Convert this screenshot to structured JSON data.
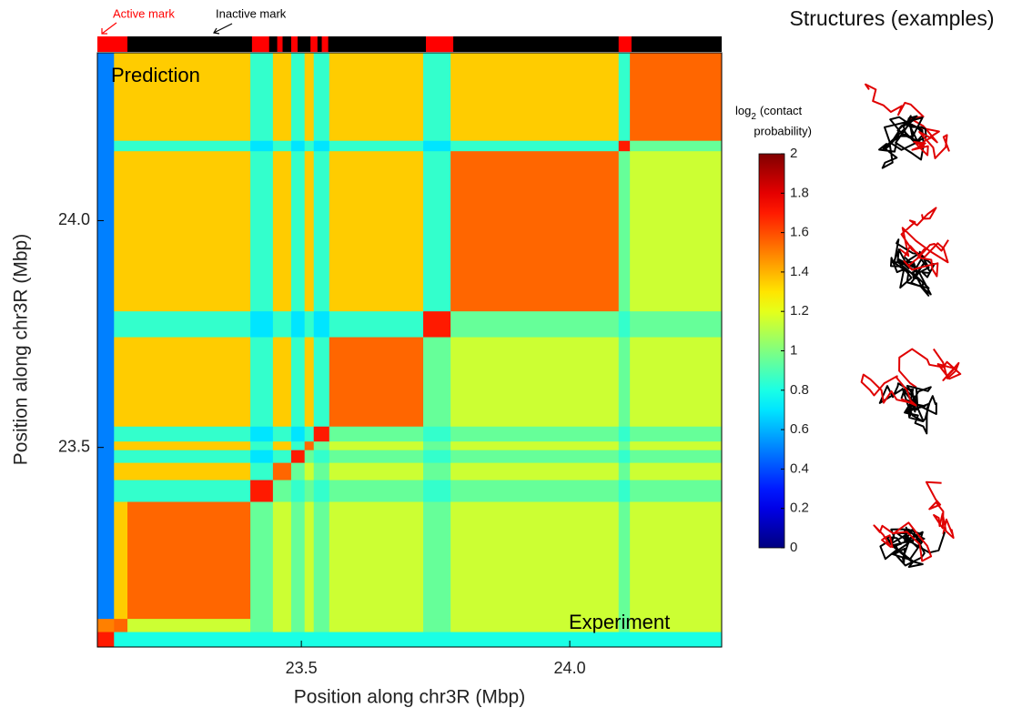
{
  "chart_data": {
    "type": "heatmap",
    "xlabel": "Position along chr3R (Mbp)",
    "ylabel": "Position along chr3R (Mbp)",
    "xlim": [
      23.12,
      24.283
    ],
    "ylim": [
      23.06,
      24.37
    ],
    "xticks": [
      23.5,
      {
        "value": 24,
        "label": "24.0"
      }
    ],
    "yticks": [
      23.5,
      {
        "value": 24,
        "label": "24.0"
      }
    ],
    "colormap": "jet",
    "clim": [
      0,
      2
    ],
    "colorbar_ticks": [
      0,
      0.2,
      0.4,
      0.6,
      0.8,
      1,
      1.2,
      1.4,
      1.6,
      1.8,
      2
    ],
    "colorbar_label": {
      "base": "log",
      "sub": "2",
      "line1": "(contact",
      "line2": "probability)"
    },
    "annotations": [
      "Prediction",
      "Experiment"
    ],
    "xbins": [
      23.12,
      23.151,
      23.176,
      23.405,
      23.447,
      23.481,
      23.506,
      23.523,
      23.552,
      23.727,
      23.778,
      24.091,
      24.112,
      24.283
    ],
    "ybins": [
      23.06,
      23.094,
      23.123,
      23.381,
      23.429,
      23.467,
      23.495,
      23.514,
      23.547,
      23.744,
      23.801,
      24.154,
      24.177,
      24.37
    ],
    "z": [
      [
        1.7,
        0.8,
        0.8,
        0.8,
        0.8,
        0.8,
        0.8,
        0.8,
        0.8,
        0.8,
        0.8,
        0.8,
        0.8
      ],
      [
        1.5,
        1.55,
        1.15,
        0.95,
        1.15,
        0.95,
        1.15,
        0.95,
        1.15,
        0.95,
        1.15,
        0.95,
        1.15
      ],
      [
        0.5,
        1.35,
        1.55,
        0.95,
        1.15,
        0.95,
        1.15,
        0.95,
        1.15,
        0.95,
        1.15,
        0.95,
        1.15
      ],
      [
        0.5,
        0.85,
        0.85,
        1.7,
        0.95,
        0.85,
        0.95,
        0.85,
        0.95,
        0.85,
        0.95,
        0.85,
        0.95
      ],
      [
        0.5,
        1.35,
        1.35,
        0.85,
        1.55,
        0.95,
        1.15,
        0.95,
        1.15,
        0.95,
        1.15,
        0.95,
        1.15
      ],
      [
        0.5,
        0.85,
        0.85,
        0.7,
        0.85,
        1.7,
        0.95,
        0.85,
        0.95,
        0.85,
        0.95,
        0.85,
        0.95
      ],
      [
        0.5,
        1.35,
        1.35,
        0.85,
        1.35,
        0.85,
        1.55,
        0.95,
        1.15,
        0.95,
        1.15,
        0.95,
        1.15
      ],
      [
        0.5,
        0.85,
        0.85,
        0.7,
        0.85,
        0.7,
        0.85,
        1.7,
        0.95,
        0.85,
        0.95,
        0.85,
        0.95
      ],
      [
        0.5,
        1.35,
        1.35,
        0.85,
        1.35,
        0.85,
        1.35,
        0.85,
        1.55,
        0.95,
        1.15,
        0.95,
        1.15
      ],
      [
        0.5,
        0.85,
        0.85,
        0.7,
        0.85,
        0.7,
        0.85,
        0.7,
        0.85,
        1.7,
        0.95,
        0.85,
        0.95
      ],
      [
        0.5,
        1.35,
        1.35,
        0.85,
        1.35,
        0.85,
        1.35,
        0.85,
        1.35,
        0.85,
        1.55,
        0.95,
        1.15
      ],
      [
        0.5,
        0.85,
        0.85,
        0.7,
        0.85,
        0.7,
        0.85,
        0.7,
        0.85,
        0.7,
        0.85,
        1.7,
        0.95
      ],
      [
        0.5,
        1.35,
        1.35,
        0.85,
        1.35,
        0.85,
        1.35,
        0.85,
        1.35,
        0.85,
        1.35,
        0.85,
        1.55
      ]
    ],
    "track": {
      "legend": [
        {
          "name": "Active mark",
          "color": "#ff0000"
        },
        {
          "name": "Inactive mark",
          "color": "#000000"
        }
      ],
      "active_segments": [
        [
          23.12,
          23.176
        ],
        [
          23.408,
          23.44
        ],
        [
          23.455,
          23.465
        ],
        [
          23.481,
          23.493
        ],
        [
          23.517,
          23.53
        ],
        [
          23.538,
          23.55
        ],
        [
          23.732,
          23.783
        ],
        [
          24.091,
          24.115
        ]
      ]
    },
    "structures_title": "Structures (examples)"
  }
}
